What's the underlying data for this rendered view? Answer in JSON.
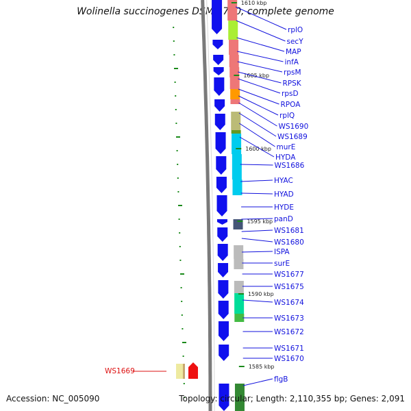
{
  "header": {
    "title": "Wolinella succinogenes DSM 1740, complete genome"
  },
  "footer": {
    "accession": "Accession: NC_005090",
    "summary": "Topology: circular; Length: 2,110,355 bp; Genes: 2,091"
  },
  "colors": {
    "backbone": "#7a7a7a",
    "gene_arrow": "#1010ee",
    "label": "#1010dd",
    "highlight": "#dd1010",
    "gc_tick": "#1a8a1a"
  },
  "scale_labels": [
    "1610 kbp",
    "1605 kbp",
    "1600 kbp",
    "1595 kbp",
    "1590 kbp",
    "1585 kbp"
  ],
  "genes": [
    {
      "label": "rplO"
    },
    {
      "label": "secY"
    },
    {
      "label": "MAP"
    },
    {
      "label": "infA"
    },
    {
      "label": "rpsM"
    },
    {
      "label": "RPSK"
    },
    {
      "label": "rpsD"
    },
    {
      "label": "RPOA"
    },
    {
      "label": "rplQ"
    },
    {
      "label": "WS1690"
    },
    {
      "label": "WS1689"
    },
    {
      "label": "murE"
    },
    {
      "label": "HYDA"
    },
    {
      "label": "WS1686"
    },
    {
      "label": "HYAC"
    },
    {
      "label": "HYAD"
    },
    {
      "label": "HYDE"
    },
    {
      "label": "panD"
    },
    {
      "label": "WS1681"
    },
    {
      "label": "WS1680"
    },
    {
      "label": "ISPA"
    },
    {
      "label": "surE"
    },
    {
      "label": "WS1677"
    },
    {
      "label": "WS1675"
    },
    {
      "label": "WS1674"
    },
    {
      "label": "WS1673"
    },
    {
      "label": "WS1672"
    },
    {
      "label": "WS1671"
    },
    {
      "label": "WS1670"
    },
    {
      "label": "flgB"
    }
  ],
  "highlighted_gene": {
    "label": "WS1669"
  },
  "cog_colors": [
    "#ee7777",
    "#aaee33",
    "#ee7777",
    "#ee7777",
    "#ee7777",
    "#ee7777",
    "#ff9900",
    "#ee7777",
    "#bbbb77",
    "#669922",
    "#00ccee",
    "#00ccee",
    "#00ccee",
    "#445577",
    "#bbbbbb",
    "#bbbbbb",
    "#bbbbbb",
    "#00dd99",
    "#44bb44",
    "#338833"
  ]
}
